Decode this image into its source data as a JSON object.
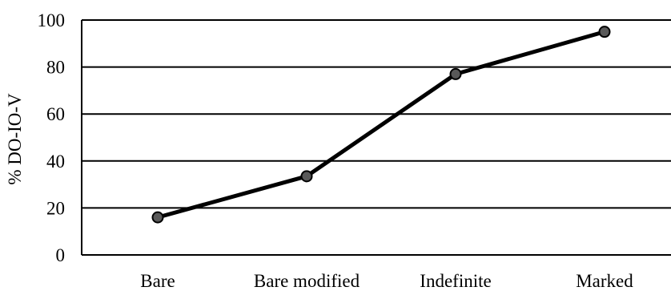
{
  "chart_data": {
    "type": "line",
    "categories": [
      "Bare",
      "Bare modified",
      "Indefinite",
      "Marked"
    ],
    "values": [
      16,
      33.5,
      77,
      95
    ],
    "ylabel": "% DO-IO-V",
    "xlabel": "",
    "ylim": [
      0,
      100
    ],
    "yticks": [
      0,
      20,
      40,
      60,
      80,
      100
    ],
    "grid": true,
    "legend": "none",
    "colors": {
      "line": "#000000",
      "marker_fill": "#595959",
      "marker_stroke": "#000000",
      "grid": "#000000"
    }
  }
}
